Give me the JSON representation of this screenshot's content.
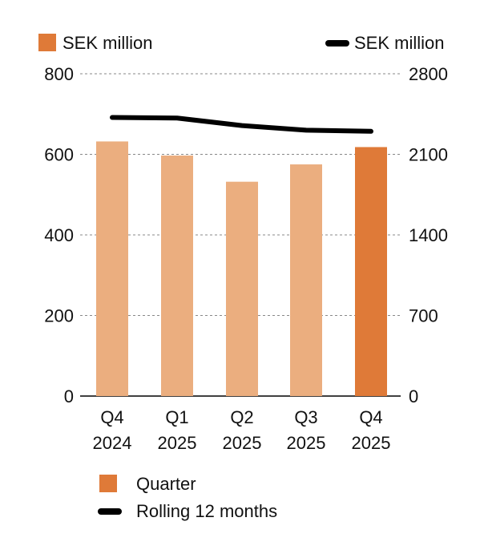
{
  "chart_data": {
    "type": "bar",
    "categories": [
      [
        "Q4",
        "2024"
      ],
      [
        "Q1",
        "2025"
      ],
      [
        "Q2",
        "2025"
      ],
      [
        "Q3",
        "2025"
      ],
      [
        "Q4",
        "2025"
      ]
    ],
    "left_axis": {
      "label": "SEK million",
      "ylim": [
        0,
        800
      ],
      "ticks": [
        "0",
        "200",
        "400",
        "600",
        "800"
      ]
    },
    "right_axis": {
      "label": "SEK million",
      "ylim": [
        0,
        2800
      ],
      "ticks": [
        "0",
        "700",
        "1400",
        "2100",
        "2800"
      ]
    },
    "series": [
      {
        "name": "Quarter",
        "kind": "bar",
        "axis": "left",
        "values": [
          632,
          597,
          532,
          575,
          618
        ]
      },
      {
        "name": "Rolling 12 months",
        "kind": "line",
        "axis": "right",
        "values": [
          2420,
          2415,
          2350,
          2310,
          2300
        ]
      }
    ],
    "grid": true,
    "legend": [
      "Quarter",
      "Rolling 12 months"
    ],
    "colors": {
      "bar_past": "#ebae7f",
      "bar_current": "#df7a38",
      "line": "#000000",
      "grid": "#888888",
      "text": "#111111"
    }
  }
}
